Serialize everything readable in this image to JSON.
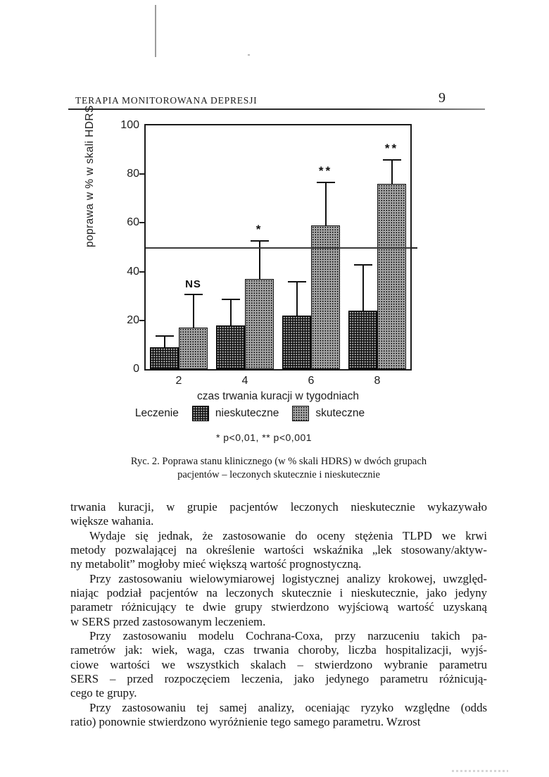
{
  "header": {
    "running_title": "TERAPIA MONITOROWANA DEPRESJI",
    "page_number": "9"
  },
  "chart_data": {
    "type": "bar",
    "categories": [
      "2",
      "4",
      "6",
      "8"
    ],
    "xlabel": "czas trwania kuracji w tygodniach",
    "ylabel": "poprawa w % w skali HDRS",
    "ylim": [
      0,
      100
    ],
    "yticks": [
      0,
      20,
      40,
      60,
      80,
      100
    ],
    "reference_line": 50,
    "grid": "off",
    "legend_position": "below",
    "legend_prefix": "Leczenie",
    "series": [
      {
        "name": "nieskuteczne",
        "pattern": "dark-halftone",
        "values": [
          9,
          18,
          22,
          24
        ],
        "error_top": [
          14,
          29,
          36,
          43
        ]
      },
      {
        "name": "skuteczne",
        "pattern": "light-halftone",
        "values": [
          17,
          37,
          59,
          76
        ],
        "error_top": [
          31,
          53,
          77,
          86
        ]
      }
    ],
    "annotations": [
      "NS",
      "*",
      "**",
      "**"
    ],
    "significance_note": "* p<0,01,  ** p<0,001"
  },
  "figure": {
    "caption_line1": "Ryc. 2. Poprawa stanu klinicznego (w % skali HDRS) w dwóch grupach",
    "caption_line2": "pacjentów – leczonych skutecznie i nieskutecznie"
  },
  "body": {
    "paragraphs": [
      {
        "indent": false,
        "lines": [
          "trwania kuracji, w grupie pacjentów leczonych nieskutecznie wykazywało",
          "większe wahania."
        ]
      },
      {
        "indent": true,
        "lines": [
          "Wydaje się jednak, że zastosowanie do oceny stężenia TLPD we krwi",
          "metody pozwalającej na określenie wartości wskaźnika „lek stosowany/aktyw-",
          "ny metabolit” mogłoby mieć większą wartość prognostyczną."
        ]
      },
      {
        "indent": true,
        "lines": [
          "Przy zastosowaniu wielowymiarowej logistycznej analizy krokowej, uwzględ-",
          "niając podział pacjentów na leczonych skutecznie i nieskutecznie, jako jedyny",
          "parametr różnicujący te dwie grupy stwierdzono wyjściową wartość uzyskaną",
          "w SERS przed zastosowanym leczeniem."
        ]
      },
      {
        "indent": true,
        "lines": [
          "Przy zastosowaniu modelu Cochrana-Coxa, przy narzuceniu takich pa-",
          "rametrów jak: wiek, waga, czas trwania choroby, liczba hospitalizacji, wyjś-",
          "ciowe wartości we wszystkich skalach – stwierdzono wybranie parametru",
          "SERS – przed rozpoczęciem leczenia, jako jedynego parametru różnicują-",
          "cego te grupy."
        ]
      },
      {
        "indent": true,
        "lines": [
          "Przy zastosowaniu tej samej analizy, oceniając ryzyko względne (odds",
          "ratio) ponownie stwierdzono wyróżnienie tego samego parametru. Wzrost"
        ]
      }
    ]
  },
  "colors": {
    "ink": "#1b1b1b",
    "bar_dark": "#151515",
    "bar_light": "#a8a8a8"
  }
}
